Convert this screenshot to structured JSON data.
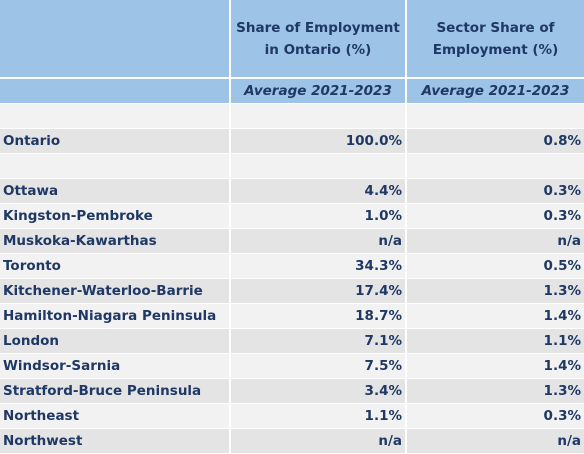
{
  "table": {
    "header": [
      "",
      "Share of Employment in Ontario (%)",
      "Sector Share of Employment (%)"
    ],
    "subheader": [
      "",
      "Average 2021-2023",
      "Average 2021-2023"
    ],
    "rows": [
      [
        "Ontario",
        "100.0%",
        "0.8%"
      ],
      [
        "Ottawa",
        "4.4%",
        "0.3%"
      ],
      [
        "Kingston-Pembroke",
        "1.0%",
        "0.3%"
      ],
      [
        "Muskoka-Kawarthas",
        "n/a",
        "n/a"
      ],
      [
        "Toronto",
        "34.3%",
        "0.5%"
      ],
      [
        "Kitchener-Waterloo-Barrie",
        "17.4%",
        "1.3%"
      ],
      [
        "Hamilton-Niagara Peninsula",
        "18.7%",
        "1.4%"
      ],
      [
        "London",
        "7.1%",
        "1.1%"
      ],
      [
        "Windsor-Sarnia",
        "7.5%",
        "1.4%"
      ],
      [
        "Stratford-Bruce Peninsula",
        "3.4%",
        "1.3%"
      ],
      [
        "Northeast",
        "1.1%",
        "0.3%"
      ],
      [
        "Northwest",
        "n/a",
        "n/a"
      ]
    ]
  }
}
